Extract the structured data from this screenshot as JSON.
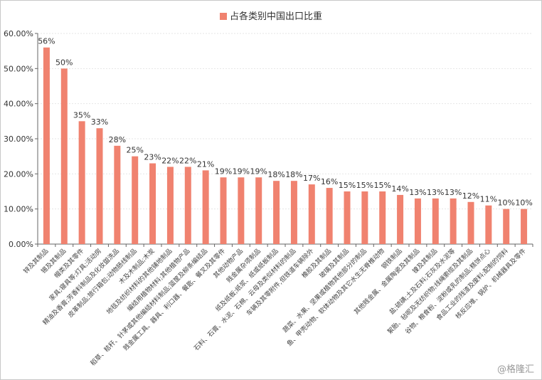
{
  "chart_data": {
    "type": "bar",
    "legend": "占各类别中国出口比重",
    "legend_position": "top",
    "bar_color": "#f0826f",
    "ylim": [
      0,
      60
    ],
    "yticks": [
      "0.00%",
      "10.00%",
      "20.00%",
      "30.00%",
      "40.00%",
      "50.00%",
      "60.00%"
    ],
    "grid": true,
    "categories": [
      "锌及其制品",
      "锡及其制品",
      "帽类及其零件",
      "家具;寝具等;灯具;活动房",
      "精油及香膏;芳香料制品及化妆盥洗品",
      "皮革制品;旅行箱包;动物肠线制品",
      "木及木制品;木炭",
      "地毯及纺织材料的其他铺地制品",
      "编结用植物材料;其他植物产品",
      "稻草、秸秆、针茅或其他编结材料制品;篮筐及柳条编结品",
      "贱金属工具、器具、利口器、餐匙、餐叉及其零件",
      "其他动物产品",
      "贱金属杂项制品",
      "纸及纸板;纸浆、纸或纸板制品",
      "石料、石膏、水泥、石棉、云母及类似材料的制品",
      "车辆及其零附件,但铁道车辆除外",
      "橡胶及其制品",
      "玻璃及其制品",
      "蔬菜、水果、坚果或植物其他部分的制品",
      "鱼、甲壳动物、软体动物及其它水生无脊椎动物",
      "钢铁制品",
      "其他贱金属、金属陶瓷及其制品",
      "镍及其制品",
      "盐;硫磺;土及石料;石灰及水泥等",
      "絮胎、毡呢及无纺织物;线绳索缆及其制品",
      "谷物、粮食粉、淀粉或乳的制品;糕饼点心",
      "食品工业的残渣及废料;配制的饲料",
      "核反应堆、锅炉、机械器具及零件"
    ],
    "values": [
      56,
      50,
      35,
      33,
      28,
      25,
      23,
      22,
      22,
      21,
      19,
      19,
      19,
      18,
      18,
      17,
      16,
      15,
      15,
      15,
      14,
      13,
      13,
      13,
      12,
      11,
      10,
      10
    ],
    "data_labels": [
      "56%",
      "50%",
      "35%",
      "33%",
      "28%",
      "25%",
      "23%",
      "22%",
      "22%",
      "21%",
      "19%",
      "19%",
      "19%",
      "18%",
      "18%",
      "17%",
      "16%",
      "15%",
      "15%",
      "15%",
      "14%",
      "13%",
      "13%",
      "13%",
      "12%",
      "11%",
      "10%",
      "10%"
    ]
  },
  "watermark": "@格隆汇"
}
